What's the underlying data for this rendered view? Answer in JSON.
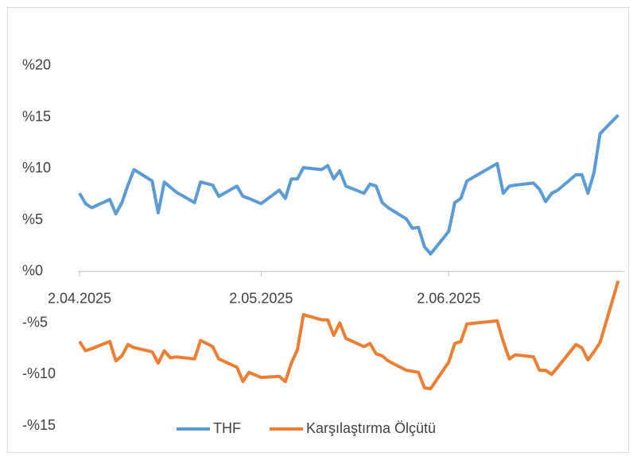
{
  "chart_data": {
    "type": "line",
    "x": [
      "2025-04-02",
      "2025-04-03",
      "2025-04-04",
      "2025-04-07",
      "2025-04-08",
      "2025-04-09",
      "2025-04-10",
      "2025-04-11",
      "2025-04-14",
      "2025-04-15",
      "2025-04-16",
      "2025-04-17",
      "2025-04-18",
      "2025-04-21",
      "2025-04-22",
      "2025-04-24",
      "2025-04-25",
      "2025-04-28",
      "2025-04-29",
      "2025-04-30",
      "2025-05-02",
      "2025-05-05",
      "2025-05-06",
      "2025-05-07",
      "2025-05-08",
      "2025-05-09",
      "2025-05-12",
      "2025-05-13",
      "2025-05-14",
      "2025-05-15",
      "2025-05-16",
      "2025-05-19",
      "2025-05-20",
      "2025-05-21",
      "2025-05-22",
      "2025-05-23",
      "2025-05-26",
      "2025-05-27",
      "2025-05-28",
      "2025-05-29",
      "2025-05-30",
      "2025-06-02",
      "2025-06-03",
      "2025-06-04",
      "2025-06-05",
      "2025-06-10",
      "2025-06-11",
      "2025-06-12",
      "2025-06-13",
      "2025-06-16",
      "2025-06-17",
      "2025-06-18",
      "2025-06-19",
      "2025-06-20",
      "2025-06-23",
      "2025-06-24",
      "2025-06-25",
      "2025-06-26",
      "2025-06-27",
      "2025-06-30"
    ],
    "series": [
      {
        "name": "THF",
        "color": "#5b9bd5",
        "values": [
          7.6,
          6.6,
          6.2,
          7.0,
          5.6,
          6.7,
          8.4,
          9.9,
          8.8,
          5.7,
          8.7,
          8.2,
          7.7,
          6.7,
          8.7,
          8.4,
          7.3,
          8.3,
          7.3,
          7.1,
          6.6,
          7.9,
          7.1,
          9.0,
          9.0,
          10.1,
          9.9,
          10.3,
          9.0,
          9.8,
          8.3,
          7.6,
          8.5,
          8.3,
          6.7,
          6.2,
          5.1,
          4.2,
          4.3,
          2.4,
          1.7,
          3.9,
          6.7,
          7.1,
          8.8,
          10.5,
          7.6,
          8.3,
          8.4,
          8.6,
          8.0,
          6.8,
          7.6,
          7.9,
          9.4,
          9.4,
          7.6,
          9.6,
          13.4,
          15.2
        ]
      },
      {
        "name": "Karşılaştırma Ölçütü",
        "color": "#ed7d31",
        "values": [
          -6.8,
          -7.7,
          -7.5,
          -6.8,
          -8.7,
          -8.2,
          -7.1,
          -7.4,
          -7.8,
          -8.9,
          -7.7,
          -8.4,
          -8.3,
          -8.5,
          -6.7,
          -7.3,
          -8.5,
          -9.3,
          -10.7,
          -9.8,
          -10.3,
          -10.2,
          -10.7,
          -8.9,
          -7.6,
          -4.2,
          -4.7,
          -4.7,
          -6.2,
          -5.0,
          -6.5,
          -7.3,
          -7.0,
          -8.0,
          -8.2,
          -8.7,
          -9.6,
          -9.7,
          -9.8,
          -11.3,
          -11.4,
          -8.8,
          -7.0,
          -6.8,
          -5.1,
          -4.8,
          -6.8,
          -8.5,
          -8.1,
          -8.3,
          -9.6,
          -9.6,
          -10.0,
          -9.3,
          -7.1,
          -7.4,
          -8.6,
          -7.8,
          -6.9,
          -0.9
        ]
      }
    ],
    "xlim": [
      "2025-04-02",
      "2025-07-01"
    ],
    "xticks": [
      {
        "value": "2025-04-02",
        "label": "2.04.2025"
      },
      {
        "value": "2025-05-02",
        "label": "2.05.2025"
      },
      {
        "value": "2025-06-02",
        "label": "2.06.2025"
      }
    ],
    "ylim": [
      -15,
      25
    ],
    "yticks": [
      {
        "value": -15,
        "label": "-%15"
      },
      {
        "value": -10,
        "label": "-%10"
      },
      {
        "value": -5,
        "label": "-%5"
      },
      {
        "value": 0,
        "label": "%0"
      },
      {
        "value": 5,
        "label": "%5"
      },
      {
        "value": 10,
        "label": "%10"
      },
      {
        "value": 15,
        "label": "%15"
      },
      {
        "value": 20,
        "label": "%20"
      }
    ],
    "grid": false,
    "legend": "bottom"
  }
}
